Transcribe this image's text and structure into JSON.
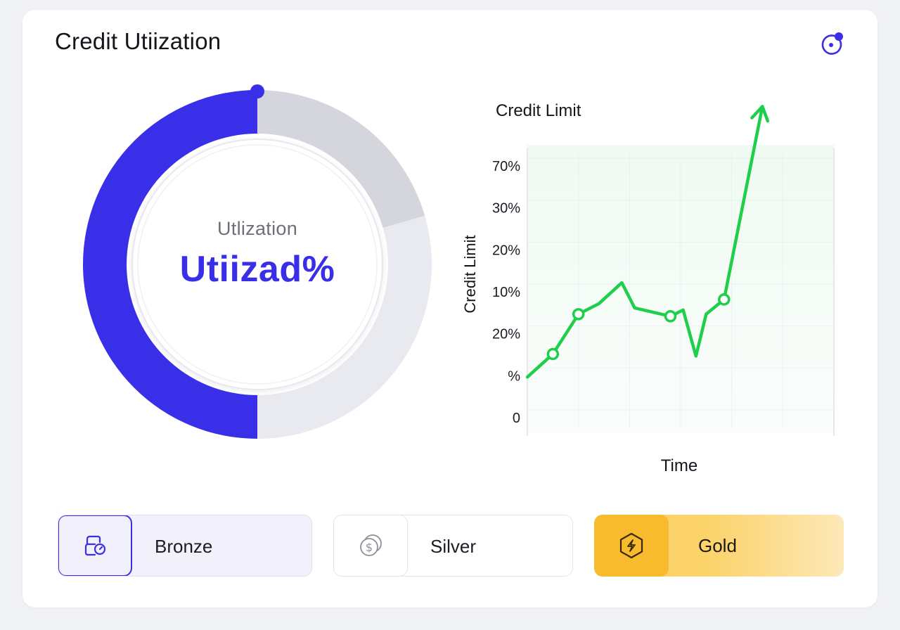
{
  "header": {
    "title": "Credit Utiization",
    "settings_icon": "settings-dot-icon"
  },
  "gauge": {
    "label": "Utlization",
    "value_text": "Utiizad%",
    "utilized_fraction": 0.5,
    "colors": {
      "utilized": "#3a2fe8",
      "track_dark": "#d4d5dd",
      "track_light": "#e9eaef"
    }
  },
  "chart_data": {
    "type": "line",
    "title": "Credit Limit",
    "xlabel": "Time",
    "ylabel": "Credit Limit",
    "y_tick_labels": [
      "0",
      "%",
      "20%",
      "10%",
      "20%",
      "30%",
      "70%"
    ],
    "series": [
      {
        "color": "#1fcf4c",
        "x": [
          0,
          0.5,
          1,
          1.4,
          1.85,
          2.1,
          2.8,
          3.05,
          3.3,
          3.5,
          3.85,
          4.6
        ],
        "y": [
          0.95,
          1.5,
          2.45,
          2.7,
          3.2,
          2.6,
          2.4,
          2.55,
          1.45,
          2.45,
          2.8,
          7.4
        ],
        "markers": [
          1,
          2,
          6,
          10
        ]
      }
    ],
    "ylim": [
      0,
      7.4
    ],
    "xlim": [
      0,
      6
    ],
    "grid": true,
    "fill_area": true
  },
  "tiers": [
    {
      "label": "Bronze",
      "icon": "document-check-icon",
      "selected": true
    },
    {
      "label": "Silver",
      "icon": "coins-dollar-icon",
      "selected": false
    },
    {
      "label": "Gold",
      "icon": "hexagon-bolt-icon",
      "selected": false
    }
  ]
}
